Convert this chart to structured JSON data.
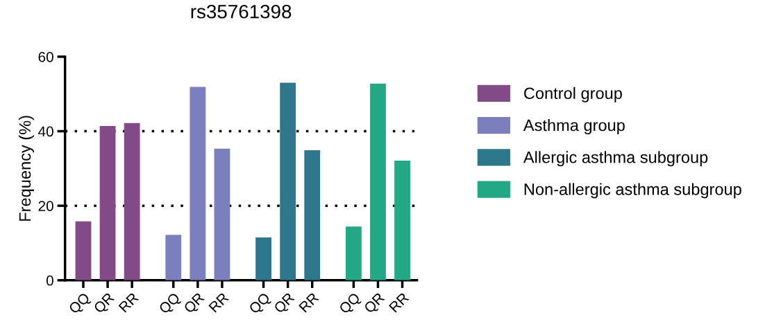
{
  "chart_data": {
    "type": "bar",
    "title": "rs35761398",
    "ylabel": "Frequency (%)",
    "categories": [
      "QQ",
      "QR",
      "RR",
      "QQ",
      "QR",
      "RR",
      "QQ",
      "QR",
      "RR",
      "QQ",
      "QR",
      "RR"
    ],
    "series": [
      {
        "name": "Control group",
        "color": "#824b87",
        "values": [
          15.8,
          41.4,
          42.2,
          null,
          null,
          null,
          null,
          null,
          null,
          null,
          null,
          null
        ]
      },
      {
        "name": "Asthma group",
        "color": "#7c7fbe",
        "values": [
          null,
          null,
          null,
          12.2,
          51.9,
          35.3,
          null,
          null,
          null,
          null,
          null,
          null
        ]
      },
      {
        "name": "Allergic asthma subgroup",
        "color": "#2d778c",
        "values": [
          null,
          null,
          null,
          null,
          null,
          null,
          11.5,
          53.0,
          34.9,
          null,
          null,
          null
        ]
      },
      {
        "name": "Non-allergic asthma subgroup",
        "color": "#23a885",
        "values": [
          null,
          null,
          null,
          null,
          null,
          null,
          null,
          null,
          null,
          14.4,
          52.8,
          32.1
        ]
      }
    ],
    "ylim": [
      0,
      60
    ],
    "yticks": [
      0,
      20,
      40,
      60
    ],
    "grid": "y",
    "legend": "right"
  }
}
